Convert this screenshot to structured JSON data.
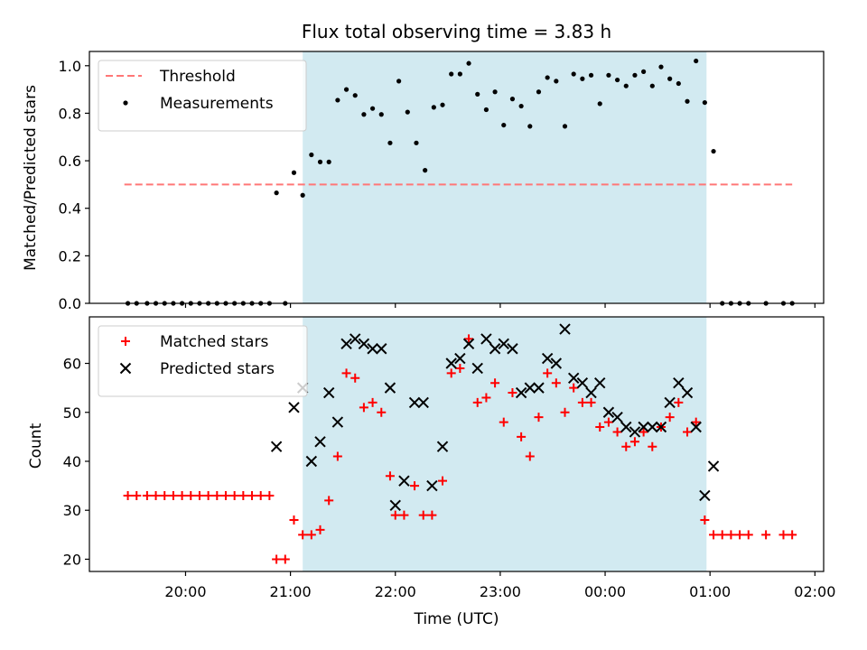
{
  "title": "Flux total observing time = 3.83 h",
  "chart_data": [
    {
      "type": "scatter",
      "panel": "top",
      "title": "Flux total observing time = 3.83 h",
      "xlabel": "",
      "ylabel": "Matched/Predicted stars",
      "ylim": [
        0,
        1.06
      ],
      "yticks": [
        0.0,
        0.2,
        0.4,
        0.6,
        0.8,
        1.0
      ],
      "ytick_labels": [
        "0.0",
        "0.2",
        "0.4",
        "0.6",
        "0.8",
        "1.0"
      ],
      "legend_position": "upper-left",
      "shaded_span": {
        "x0": "21:07",
        "x1": "00:58",
        "color": "#add8e6"
      },
      "threshold": {
        "name": "Threshold",
        "y": 0.5,
        "x0": "19:25",
        "x1": "01:47",
        "color": "#ff7777"
      },
      "series": [
        {
          "name": "Measurements",
          "marker": "dot",
          "color": "#000000",
          "points": [
            [
              "19:27",
              0.0
            ],
            [
              "19:32",
              0.0
            ],
            [
              "19:38",
              0.0
            ],
            [
              "19:43",
              0.0
            ],
            [
              "19:48",
              0.0
            ],
            [
              "19:53",
              0.0
            ],
            [
              "19:58",
              0.0
            ],
            [
              "20:03",
              0.0
            ],
            [
              "20:08",
              0.0
            ],
            [
              "20:13",
              0.0
            ],
            [
              "20:18",
              0.0
            ],
            [
              "20:23",
              0.0
            ],
            [
              "20:28",
              0.0
            ],
            [
              "20:33",
              0.0
            ],
            [
              "20:38",
              0.0
            ],
            [
              "20:43",
              0.0
            ],
            [
              "20:48",
              0.0
            ],
            [
              "20:52",
              0.465
            ],
            [
              "20:57",
              0.0
            ],
            [
              "21:02",
              0.55
            ],
            [
              "21:07",
              0.455
            ],
            [
              "21:12",
              0.625
            ],
            [
              "21:17",
              0.595
            ],
            [
              "21:22",
              0.595
            ],
            [
              "21:27",
              0.855
            ],
            [
              "21:32",
              0.9
            ],
            [
              "21:37",
              0.875
            ],
            [
              "21:42",
              0.795
            ],
            [
              "21:47",
              0.82
            ],
            [
              "21:52",
              0.795
            ],
            [
              "21:57",
              0.675
            ],
            [
              "22:02",
              0.935
            ],
            [
              "22:07",
              0.805
            ],
            [
              "22:12",
              0.675
            ],
            [
              "22:17",
              0.56
            ],
            [
              "22:22",
              0.825
            ],
            [
              "22:27",
              0.835
            ],
            [
              "22:32",
              0.965
            ],
            [
              "22:37",
              0.965
            ],
            [
              "22:42",
              1.01
            ],
            [
              "22:47",
              0.88
            ],
            [
              "22:52",
              0.815
            ],
            [
              "22:57",
              0.89
            ],
            [
              "23:02",
              0.75
            ],
            [
              "23:07",
              0.86
            ],
            [
              "23:12",
              0.83
            ],
            [
              "23:17",
              0.745
            ],
            [
              "23:22",
              0.89
            ],
            [
              "23:27",
              0.95
            ],
            [
              "23:32",
              0.935
            ],
            [
              "23:37",
              0.745
            ],
            [
              "23:42",
              0.965
            ],
            [
              "23:47",
              0.945
            ],
            [
              "23:52",
              0.96
            ],
            [
              "23:57",
              0.84
            ],
            [
              "00:02",
              0.96
            ],
            [
              "00:07",
              0.94
            ],
            [
              "00:12",
              0.915
            ],
            [
              "00:17",
              0.96
            ],
            [
              "00:22",
              0.975
            ],
            [
              "00:27",
              0.915
            ],
            [
              "00:32",
              0.995
            ],
            [
              "00:37",
              0.945
            ],
            [
              "00:42",
              0.925
            ],
            [
              "00:47",
              0.85
            ],
            [
              "00:52",
              1.02
            ],
            [
              "00:57",
              0.845
            ],
            [
              "01:02",
              0.64
            ],
            [
              "01:07",
              0.0
            ],
            [
              "01:12",
              0.0
            ],
            [
              "01:17",
              0.0
            ],
            [
              "01:22",
              0.0
            ],
            [
              "01:32",
              0.0
            ],
            [
              "01:42",
              0.0
            ],
            [
              "01:47",
              0.0
            ]
          ]
        }
      ]
    },
    {
      "type": "scatter",
      "panel": "bottom",
      "xlabel": "Time (UTC)",
      "ylabel": "Count",
      "ylim": [
        17.5,
        69.5
      ],
      "yticks": [
        20,
        30,
        40,
        50,
        60
      ],
      "ytick_labels": [
        "20",
        "30",
        "40",
        "50",
        "60"
      ],
      "xticks": [
        "20:00",
        "21:00",
        "22:00",
        "23:00",
        "00:00",
        "01:00",
        "02:00"
      ],
      "xlim": [
        "19:05",
        "02:05"
      ],
      "legend_position": "upper-left",
      "shaded_span": {
        "x0": "21:07",
        "x1": "00:58",
        "color": "#add8e6"
      },
      "series": [
        {
          "name": "Matched stars",
          "marker": "plus",
          "color": "#ff0000",
          "points": [
            [
              "19:27",
              33
            ],
            [
              "19:32",
              33
            ],
            [
              "19:38",
              33
            ],
            [
              "19:43",
              33
            ],
            [
              "19:48",
              33
            ],
            [
              "19:53",
              33
            ],
            [
              "19:58",
              33
            ],
            [
              "20:03",
              33
            ],
            [
              "20:08",
              33
            ],
            [
              "20:13",
              33
            ],
            [
              "20:18",
              33
            ],
            [
              "20:23",
              33
            ],
            [
              "20:28",
              33
            ],
            [
              "20:33",
              33
            ],
            [
              "20:38",
              33
            ],
            [
              "20:43",
              33
            ],
            [
              "20:48",
              33
            ],
            [
              "20:52",
              20
            ],
            [
              "20:57",
              20
            ],
            [
              "21:02",
              28
            ],
            [
              "21:07",
              25
            ],
            [
              "21:12",
              25
            ],
            [
              "21:17",
              26
            ],
            [
              "21:22",
              32
            ],
            [
              "21:27",
              41
            ],
            [
              "21:32",
              58
            ],
            [
              "21:37",
              57
            ],
            [
              "21:42",
              51
            ],
            [
              "21:47",
              52
            ],
            [
              "21:52",
              50
            ],
            [
              "21:57",
              37
            ],
            [
              "22:00",
              29
            ],
            [
              "22:05",
              29
            ],
            [
              "22:11",
              35
            ],
            [
              "22:16",
              29
            ],
            [
              "22:21",
              29
            ],
            [
              "22:27",
              36
            ],
            [
              "22:32",
              58
            ],
            [
              "22:37",
              59
            ],
            [
              "22:42",
              65
            ],
            [
              "22:47",
              52
            ],
            [
              "22:52",
              53
            ],
            [
              "22:57",
              56
            ],
            [
              "23:02",
              48
            ],
            [
              "23:07",
              54
            ],
            [
              "23:12",
              45
            ],
            [
              "23:17",
              41
            ],
            [
              "23:22",
              49
            ],
            [
              "23:27",
              58
            ],
            [
              "23:32",
              56
            ],
            [
              "23:37",
              50
            ],
            [
              "23:42",
              55
            ],
            [
              "23:47",
              52
            ],
            [
              "23:52",
              52
            ],
            [
              "23:57",
              47
            ],
            [
              "00:02",
              48
            ],
            [
              "00:07",
              46
            ],
            [
              "00:12",
              43
            ],
            [
              "00:17",
              44
            ],
            [
              "00:22",
              46
            ],
            [
              "00:27",
              43
            ],
            [
              "00:32",
              47
            ],
            [
              "00:37",
              49
            ],
            [
              "00:42",
              52
            ],
            [
              "00:47",
              46
            ],
            [
              "00:52",
              48
            ],
            [
              "00:57",
              28
            ],
            [
              "01:02",
              25
            ],
            [
              "01:07",
              25
            ],
            [
              "01:12",
              25
            ],
            [
              "01:17",
              25
            ],
            [
              "01:22",
              25
            ],
            [
              "01:32",
              25
            ],
            [
              "01:42",
              25
            ],
            [
              "01:47",
              25
            ]
          ]
        },
        {
          "name": "Predicted stars",
          "marker": "x",
          "color": "#000000",
          "points": [
            [
              "20:52",
              43
            ],
            [
              "21:02",
              51
            ],
            [
              "21:07",
              55
            ],
            [
              "21:12",
              40
            ],
            [
              "21:17",
              44
            ],
            [
              "21:22",
              54
            ],
            [
              "21:27",
              48
            ],
            [
              "21:32",
              64
            ],
            [
              "21:37",
              65
            ],
            [
              "21:42",
              64
            ],
            [
              "21:47",
              63
            ],
            [
              "21:52",
              63
            ],
            [
              "21:57",
              55
            ],
            [
              "22:00",
              31
            ],
            [
              "22:05",
              36
            ],
            [
              "22:11",
              52
            ],
            [
              "22:16",
              52
            ],
            [
              "22:21",
              35
            ],
            [
              "22:27",
              43
            ],
            [
              "22:32",
              60
            ],
            [
              "22:37",
              61
            ],
            [
              "22:42",
              64
            ],
            [
              "22:47",
              59
            ],
            [
              "22:52",
              65
            ],
            [
              "22:57",
              63
            ],
            [
              "23:02",
              64
            ],
            [
              "23:07",
              63
            ],
            [
              "23:12",
              54
            ],
            [
              "23:17",
              55
            ],
            [
              "23:22",
              55
            ],
            [
              "23:27",
              61
            ],
            [
              "23:32",
              60
            ],
            [
              "23:37",
              67
            ],
            [
              "23:42",
              57
            ],
            [
              "23:47",
              56
            ],
            [
              "23:52",
              54
            ],
            [
              "23:57",
              56
            ],
            [
              "00:02",
              50
            ],
            [
              "00:07",
              49
            ],
            [
              "00:12",
              47
            ],
            [
              "00:17",
              46
            ],
            [
              "00:22",
              47
            ],
            [
              "00:27",
              47
            ],
            [
              "00:32",
              47
            ],
            [
              "00:37",
              52
            ],
            [
              "00:42",
              56
            ],
            [
              "00:47",
              54
            ],
            [
              "00:52",
              47
            ],
            [
              "00:57",
              33
            ],
            [
              "01:02",
              39
            ]
          ]
        }
      ]
    }
  ]
}
